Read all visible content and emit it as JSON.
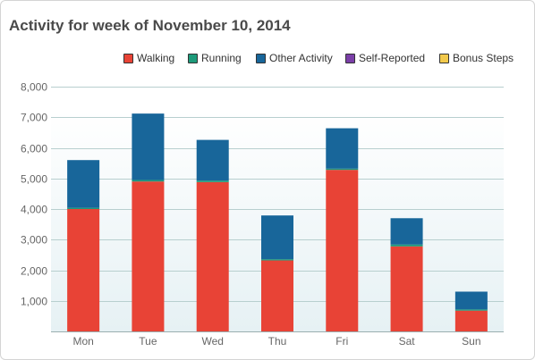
{
  "title": "Activity for week of November 10, 2014",
  "legend": [
    {
      "label": "Walking",
      "color": "#e84336"
    },
    {
      "label": "Running",
      "color": "#1d9a7a"
    },
    {
      "label": "Other Activity",
      "color": "#18669a"
    },
    {
      "label": "Self-Reported",
      "color": "#7b3fa8"
    },
    {
      "label": "Bonus Steps",
      "color": "#f2c94c"
    }
  ],
  "chart_data": {
    "type": "bar",
    "stacked": true,
    "title": "Activity for week of November 10, 2014",
    "categories": [
      "Mon",
      "Tue",
      "Wed",
      "Thu",
      "Fri",
      "Sat",
      "Sun"
    ],
    "series": [
      {
        "name": "Walking",
        "color": "#e84336",
        "values": [
          4000,
          4900,
          4880,
          2320,
          5280,
          2780,
          680
        ]
      },
      {
        "name": "Running",
        "color": "#1d9a7a",
        "values": [
          40,
          50,
          50,
          40,
          40,
          60,
          40
        ]
      },
      {
        "name": "Other Activity",
        "color": "#18669a",
        "values": [
          1560,
          2170,
          1330,
          1430,
          1320,
          860,
          580
        ]
      },
      {
        "name": "Self-Reported",
        "color": "#7b3fa8",
        "values": [
          0,
          0,
          0,
          0,
          0,
          0,
          0
        ]
      },
      {
        "name": "Bonus Steps",
        "color": "#f2c94c",
        "values": [
          0,
          0,
          0,
          0,
          0,
          0,
          0
        ]
      }
    ],
    "ylim": [
      0,
      8000
    ],
    "yticks": [
      "1,000",
      "2,000",
      "3,000",
      "4,000",
      "5,000",
      "6,000",
      "7,000",
      "8,000"
    ],
    "ytick_values": [
      1000,
      2000,
      3000,
      4000,
      5000,
      6000,
      7000,
      8000
    ],
    "xlabel": "",
    "ylabel": "",
    "grid": true,
    "legend_position": "top-right"
  }
}
